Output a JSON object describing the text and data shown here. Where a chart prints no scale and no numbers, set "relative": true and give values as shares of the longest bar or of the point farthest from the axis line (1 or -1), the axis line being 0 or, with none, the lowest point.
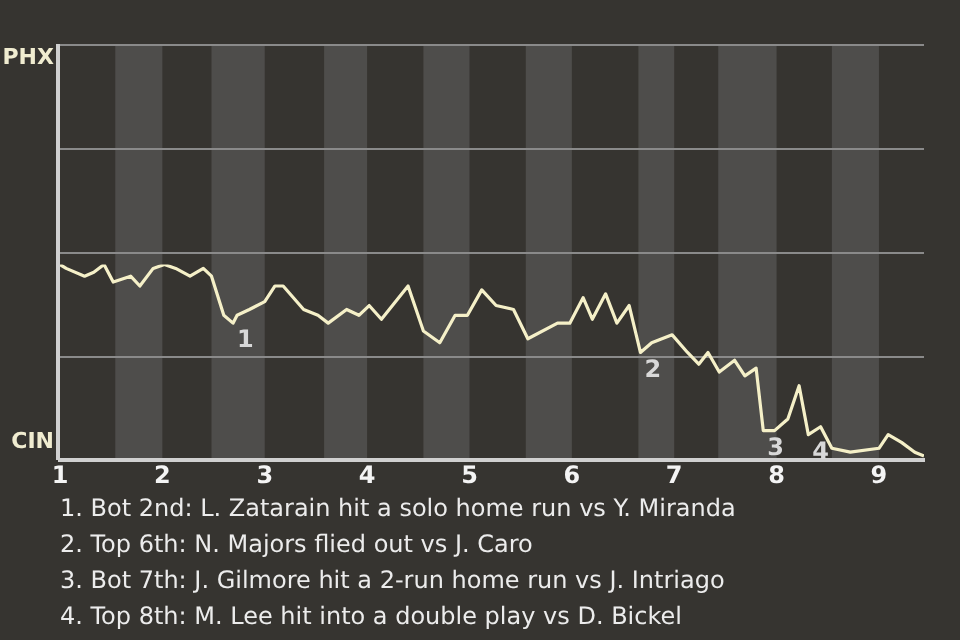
{
  "chart_data": {
    "type": "line",
    "relative": true,
    "x": [
      1,
      1.06,
      1.24,
      1.33,
      1.43,
      1.52,
      1.69,
      1.78,
      1.91,
      2.02,
      2.13,
      2.27,
      2.4,
      2.48,
      2.6,
      2.69,
      2.73,
      2.85,
      3,
      3.1,
      3.18,
      3.38,
      3.52,
      3.62,
      3.8,
      3.92,
      4.02,
      4.14,
      4.4,
      4.55,
      4.71,
      4.86,
      4.98,
      5.12,
      5.26,
      5.43,
      5.57,
      5.86,
      5.98,
      6.11,
      6.2,
      6.33,
      6.44,
      6.56,
      6.67,
      6.78,
      6.98,
      7.13,
      7.24,
      7.33,
      7.44,
      7.59,
      7.69,
      7.8,
      7.87,
      7.98,
      8.11,
      8.22,
      8.31,
      8.43,
      8.54,
      8.72,
      9,
      9.09,
      9.22,
      9.35,
      9.44
    ],
    "series": [
      {
        "color": "#f5f0c8",
        "values": [
          1,
          0.98,
          0.94,
          0.96,
          1,
          0.91,
          0.94,
          0.89,
          0.98,
          1,
          0.98,
          0.94,
          0.98,
          0.94,
          0.74,
          0.7,
          0.74,
          0.77,
          0.81,
          0.89,
          0.89,
          0.77,
          0.74,
          0.7,
          0.77,
          0.74,
          0.79,
          0.72,
          0.89,
          0.66,
          0.6,
          0.74,
          0.74,
          0.87,
          0.79,
          0.77,
          0.62,
          0.7,
          0.7,
          0.83,
          0.72,
          0.85,
          0.7,
          0.79,
          0.55,
          0.6,
          0.64,
          0.55,
          0.49,
          0.55,
          0.45,
          0.51,
          0.43,
          0.47,
          0.15,
          0.15,
          0.21,
          0.38,
          0.13,
          0.17,
          0.06,
          0.04,
          0.06,
          0.13,
          0.09,
          0.04,
          0.02
        ]
      }
    ],
    "xlim": [
      1,
      9.44
    ],
    "xticks": [
      1,
      2,
      3,
      4,
      5,
      6,
      7,
      8,
      9
    ],
    "bands": [
      {
        "axis": "x",
        "from": 1.54,
        "to": 2,
        "color": "#4e4d4b"
      },
      {
        "axis": "x",
        "from": 2.48,
        "to": 3,
        "color": "#4e4d4b"
      },
      {
        "axis": "x",
        "from": 3.58,
        "to": 4,
        "color": "#4e4d4b"
      },
      {
        "axis": "x",
        "from": 4.55,
        "to": 5,
        "color": "#4e4d4b"
      },
      {
        "axis": "x",
        "from": 5.55,
        "to": 6,
        "color": "#4e4d4b"
      },
      {
        "axis": "x",
        "from": 6.65,
        "to": 7,
        "color": "#4e4d4b"
      },
      {
        "axis": "x",
        "from": 7.43,
        "to": 8,
        "color": "#4e4d4b"
      },
      {
        "axis": "x",
        "from": 8.54,
        "to": 9,
        "color": "#4e4d4b"
      }
    ],
    "annotations": [
      "PHX",
      "CIN",
      {
        "text": "1",
        "x": 2.69,
        "y": 0.7
      },
      {
        "text": "2",
        "x": 6.67,
        "y": 0.55
      },
      {
        "text": "3",
        "x": 7.87,
        "y": 0.15
      },
      {
        "text": "4",
        "x": 8.31,
        "y": 0.13
      },
      "1. Bot 2nd: L. Zatarain hit a solo home run vs Y. Miranda",
      "2. Top 6th: N. Majors flied out vs J. Caro",
      "3. Bot 7th: J. Gilmore hit a 2-run home run vs J. Intriago",
      "4. Top 8th: M. Lee hit into a double play vs D. Bickel"
    ],
    "ref_lines": [
      {
        "axis": "y",
        "value": 0.53,
        "color": "#8a8a8a"
      }
    ],
    "legend": false,
    "marker": "none",
    "line_style": "solid"
  }
}
